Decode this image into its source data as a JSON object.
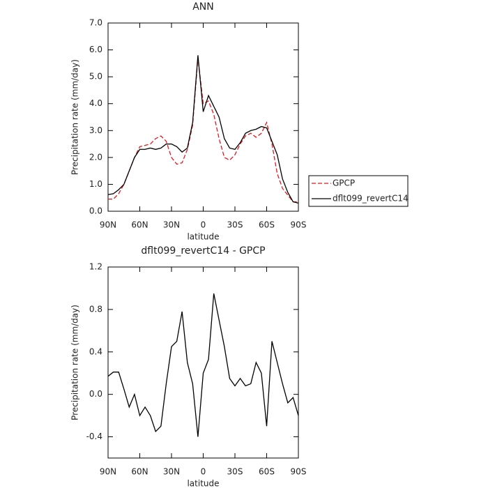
{
  "chart_data": [
    {
      "type": "line",
      "title": "ANN",
      "xlabel": "latitude",
      "ylabel": "Precipitation rate (mm/day)",
      "x": [
        90,
        85,
        80,
        75,
        70,
        65,
        60,
        55,
        50,
        45,
        40,
        35,
        30,
        25,
        20,
        15,
        10,
        5,
        0,
        -5,
        -10,
        -15,
        -20,
        -25,
        -30,
        -35,
        -40,
        -45,
        -50,
        -55,
        -60,
        -65,
        -70,
        -75,
        -80,
        -85,
        -90
      ],
      "series": [
        {
          "name": "GPCP",
          "color": "#e8141c",
          "linestyle": "dashed",
          "values": [
            0.45,
            0.45,
            0.65,
            1.0,
            1.5,
            2.0,
            2.4,
            2.45,
            2.5,
            2.7,
            2.8,
            2.6,
            2.0,
            1.75,
            1.8,
            2.3,
            3.2,
            5.7,
            4.0,
            4.1,
            3.6,
            2.7,
            2.0,
            1.9,
            2.1,
            2.5,
            2.8,
            2.9,
            2.75,
            2.9,
            3.3,
            2.5,
            1.4,
            0.85,
            0.6,
            0.35,
            0.35
          ]
        },
        {
          "name": "dflt099_revertC14",
          "color": "#000000",
          "linestyle": "solid",
          "values": [
            0.62,
            0.65,
            0.8,
            1.0,
            1.5,
            2.0,
            2.3,
            2.3,
            2.35,
            2.3,
            2.35,
            2.5,
            2.5,
            2.4,
            2.2,
            2.35,
            3.3,
            5.8,
            3.7,
            4.3,
            3.9,
            3.5,
            2.7,
            2.35,
            2.3,
            2.55,
            2.9,
            3.0,
            3.05,
            3.15,
            3.1,
            2.6,
            2.1,
            1.2,
            0.7,
            0.35,
            0.3
          ]
        }
      ],
      "xlim": [
        90,
        -90
      ],
      "xticks": [
        {
          "value": 90,
          "label": "90N"
        },
        {
          "value": 60,
          "label": "60N"
        },
        {
          "value": 30,
          "label": "30N"
        },
        0,
        {
          "value": -30,
          "label": "30S"
        },
        {
          "value": -60,
          "label": "60S"
        },
        {
          "value": -90,
          "label": "90S"
        }
      ],
      "ylim": [
        0,
        7
      ],
      "yticks": [
        {
          "value": 0,
          "label": "0.0"
        },
        {
          "value": 1,
          "label": "1.0"
        },
        {
          "value": 2,
          "label": "2.0"
        },
        {
          "value": 3,
          "label": "3.0"
        },
        {
          "value": 4,
          "label": "4.0"
        },
        {
          "value": 5,
          "label": "5.0"
        },
        {
          "value": 6,
          "label": "6.0"
        },
        {
          "value": 7,
          "label": "7.0"
        }
      ],
      "legend": "right"
    },
    {
      "type": "line",
      "title": "dflt099_revertC14 - GPCP",
      "xlabel": "latitude",
      "ylabel": "Precipitation rate (mm/day)",
      "x": [
        90,
        85,
        80,
        75,
        70,
        65,
        60,
        55,
        50,
        45,
        40,
        35,
        30,
        25,
        20,
        15,
        10,
        5,
        0,
        -5,
        -10,
        -15,
        -20,
        -25,
        -30,
        -35,
        -40,
        -45,
        -50,
        -55,
        -60,
        -65,
        -70,
        -75,
        -80,
        -85,
        -90
      ],
      "color": "#000000",
      "linestyle": "solid",
      "values": [
        0.17,
        0.21,
        0.21,
        0.05,
        -0.12,
        0.0,
        -0.2,
        -0.12,
        -0.2,
        -0.35,
        -0.3,
        0.1,
        0.45,
        0.5,
        0.78,
        0.3,
        0.1,
        -0.4,
        0.2,
        0.33,
        0.95,
        0.7,
        0.45,
        0.15,
        0.08,
        0.15,
        0.08,
        0.1,
        0.3,
        0.2,
        -0.3,
        0.5,
        0.3,
        0.1,
        -0.08,
        -0.03,
        -0.2
      ],
      "xlim": [
        90,
        -90
      ],
      "xticks": [
        {
          "value": 90,
          "label": "90N"
        },
        {
          "value": 60,
          "label": "60N"
        },
        {
          "value": 30,
          "label": "30N"
        },
        0,
        {
          "value": -30,
          "label": "30S"
        },
        {
          "value": -60,
          "label": "60S"
        },
        {
          "value": -90,
          "label": "90S"
        }
      ],
      "ylim": [
        -0.6,
        1.2
      ],
      "yticks": [
        -0.4,
        {
          "value": 0,
          "label": "0.0"
        },
        0.4,
        0.8,
        1.2
      ]
    }
  ]
}
